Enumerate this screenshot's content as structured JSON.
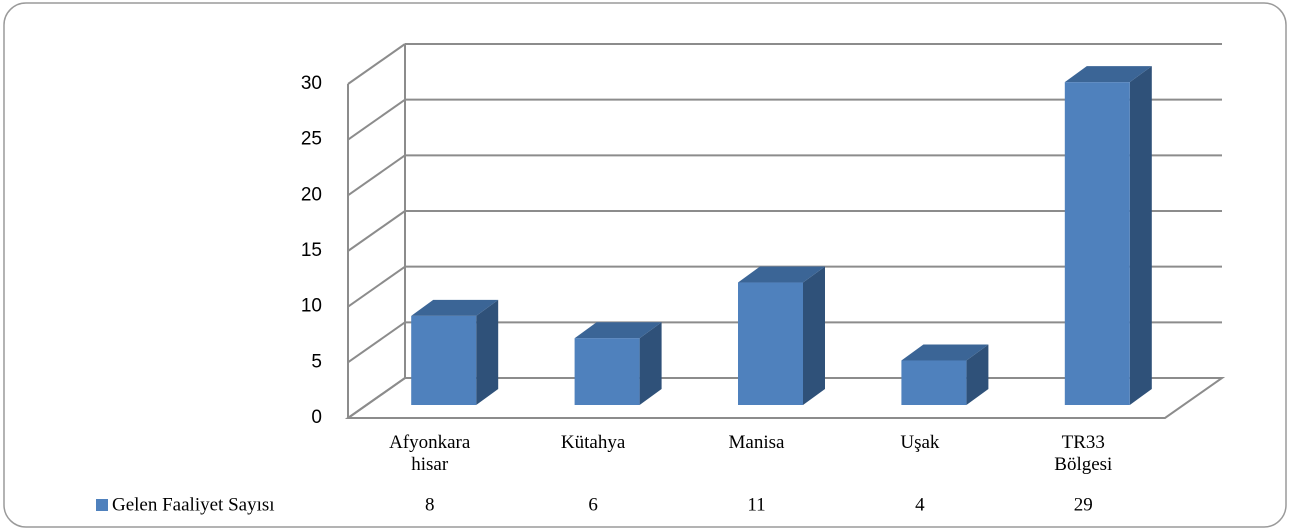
{
  "chart_data": {
    "type": "bar3d",
    "categories": [
      "Afyonkara hisar",
      "Kütahya",
      "Manisa",
      "Uşak",
      "TR33 Bölgesi"
    ],
    "series": [
      {
        "name": "Gelen Faaliyet Sayısı",
        "color": "#4f81bd",
        "values": [
          8,
          6,
          11,
          4,
          29
        ]
      }
    ],
    "ylim": [
      0,
      30
    ],
    "yticks": [
      0,
      5,
      10,
      15,
      20,
      25,
      30
    ],
    "grid": true,
    "data_table": true
  }
}
